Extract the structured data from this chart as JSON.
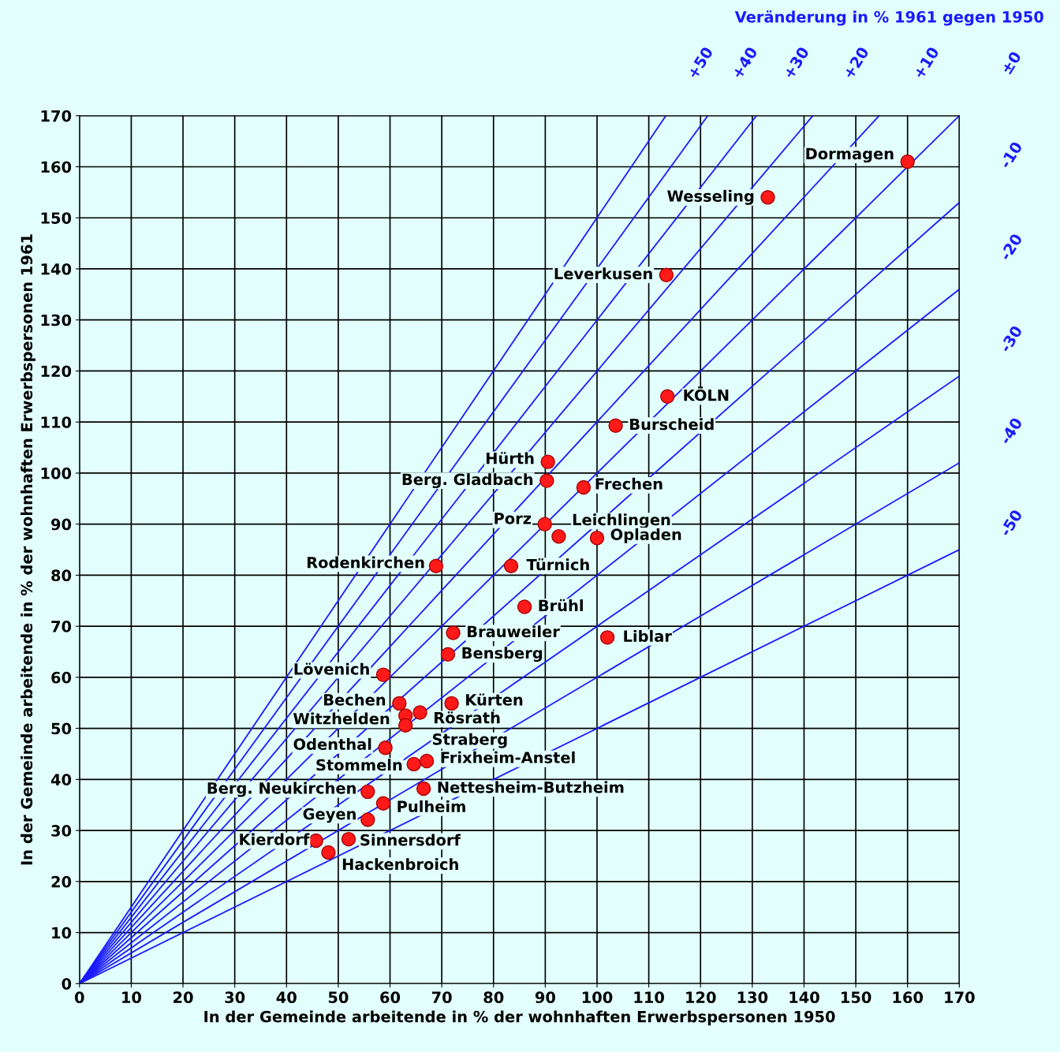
{
  "chart_data": {
    "type": "scatter",
    "xlabel": "In der Gemeinde arbeitende in % der wohnhaften Erwerbspersonen 1950",
    "ylabel": "In der Gemeinde arbeitende in % der wohnhaften Erwerbspersonen 1961",
    "xlim": [
      0,
      170
    ],
    "ylim": [
      0,
      170
    ],
    "xticks": [
      0,
      10,
      20,
      30,
      40,
      50,
      60,
      70,
      80,
      90,
      100,
      110,
      120,
      130,
      140,
      150,
      160,
      170
    ],
    "yticks": [
      0,
      10,
      20,
      30,
      40,
      50,
      60,
      70,
      80,
      90,
      100,
      110,
      120,
      130,
      140,
      150,
      160,
      170
    ],
    "grid": true,
    "marker": "circle",
    "series": [
      {
        "color": "#ff1a1a",
        "x": [
          160,
          133,
          113.4,
          113.6,
          103.6,
          90.5,
          90.3,
          97.4,
          89.9,
          92.6,
          100,
          68.9,
          83.4,
          86,
          72.2,
          71.2,
          102,
          58.7,
          61.8,
          71.9,
          65.8,
          63,
          63,
          59.1,
          64.6,
          67.1,
          55.7,
          66.5,
          58.7,
          55.7,
          45.7,
          52,
          48.1
        ],
        "values": [
          161,
          154,
          138.8,
          115,
          109.3,
          102.2,
          98.5,
          97.2,
          90,
          87.6,
          87.3,
          81.8,
          81.8,
          73.8,
          68.7,
          64.5,
          67.8,
          60.5,
          54.9,
          54.9,
          53.1,
          52.5,
          50.6,
          46.2,
          43,
          43.6,
          37.6,
          38.2,
          35.3,
          32.1,
          28,
          28.3,
          25.7
        ]
      },
      {
        "type": "line",
        "marker": "none",
        "name": "+50",
        "color": "#1a1aff",
        "x": [
          0,
          113.3
        ],
        "values": [
          0,
          170
        ]
      },
      {
        "type": "line",
        "marker": "none",
        "name": "+40",
        "color": "#1a1aff",
        "x": [
          0,
          121.4
        ],
        "values": [
          0,
          170
        ]
      },
      {
        "type": "line",
        "marker": "none",
        "name": "+30",
        "color": "#1a1aff",
        "x": [
          0,
          130.8
        ],
        "values": [
          0,
          170
        ]
      },
      {
        "type": "line",
        "marker": "none",
        "name": "+20",
        "color": "#1a1aff",
        "x": [
          0,
          141.7
        ],
        "values": [
          0,
          170
        ]
      },
      {
        "type": "line",
        "marker": "none",
        "name": "+10",
        "color": "#1a1aff",
        "x": [
          0,
          154.5
        ],
        "values": [
          0,
          170
        ]
      },
      {
        "type": "line",
        "marker": "none",
        "name": "±0",
        "color": "#1a1aff",
        "x": [
          0,
          170
        ],
        "values": [
          0,
          170
        ]
      },
      {
        "type": "line",
        "marker": "none",
        "name": "-10",
        "color": "#1a1aff",
        "x": [
          0,
          170
        ],
        "values": [
          0,
          153
        ]
      },
      {
        "type": "line",
        "marker": "none",
        "name": "-20",
        "color": "#1a1aff",
        "x": [
          0,
          170
        ],
        "values": [
          0,
          136
        ]
      },
      {
        "type": "line",
        "marker": "none",
        "name": "-30",
        "color": "#1a1aff",
        "x": [
          0,
          170
        ],
        "values": [
          0,
          119
        ]
      },
      {
        "type": "line",
        "marker": "none",
        "name": "-40",
        "color": "#1a1aff",
        "x": [
          0,
          170
        ],
        "values": [
          0,
          102
        ]
      },
      {
        "type": "line",
        "marker": "none",
        "name": "-50",
        "color": "#1a1aff",
        "x": [
          0,
          170
        ],
        "values": [
          0,
          85
        ]
      }
    ],
    "annotations": [
      {
        "text": "Dormagen",
        "x": 160,
        "y": 161
      },
      {
        "text": "Wesseling",
        "x": 133,
        "y": 154
      },
      {
        "text": "Leverkusen",
        "x": 113.4,
        "y": 138.8
      },
      {
        "text": "KÖLN",
        "x": 113.6,
        "y": 115
      },
      {
        "text": "Burscheid",
        "x": 103.6,
        "y": 109.3
      },
      {
        "text": "Hürth",
        "x": 90.5,
        "y": 102.2
      },
      {
        "text": "Berg. Gladbach",
        "x": 90.3,
        "y": 98.5
      },
      {
        "text": "Frechen",
        "x": 97.4,
        "y": 97.2
      },
      {
        "text": "Porz",
        "x": 89.9,
        "y": 90
      },
      {
        "text": "Leichlingen",
        "x": 92.6,
        "y": 87.6
      },
      {
        "text": "Opladen",
        "x": 100,
        "y": 87.3
      },
      {
        "text": "Rodenkirchen",
        "x": 68.9,
        "y": 81.8
      },
      {
        "text": "Türnich",
        "x": 83.4,
        "y": 81.8
      },
      {
        "text": "Brühl",
        "x": 86,
        "y": 73.8
      },
      {
        "text": "Brauweiler",
        "x": 72.2,
        "y": 68.7
      },
      {
        "text": "Bensberg",
        "x": 71.2,
        "y": 64.5
      },
      {
        "text": "Liblar",
        "x": 102,
        "y": 67.8
      },
      {
        "text": "Lövenich",
        "x": 58.7,
        "y": 60.5
      },
      {
        "text": "Bechen",
        "x": 61.8,
        "y": 54.9
      },
      {
        "text": "Kürten",
        "x": 71.9,
        "y": 54.9
      },
      {
        "text": "Rösrath",
        "x": 65.8,
        "y": 53.1
      },
      {
        "text": "Witzhelden",
        "x": 63,
        "y": 52.5
      },
      {
        "text": "Straberg",
        "x": 63,
        "y": 50.6
      },
      {
        "text": "Odenthal",
        "x": 59.1,
        "y": 46.2
      },
      {
        "text": "Stommeln",
        "x": 64.6,
        "y": 43
      },
      {
        "text": "Frixheim-Anstel",
        "x": 67.1,
        "y": 43.6
      },
      {
        "text": "Berg. Neukirchen",
        "x": 55.7,
        "y": 37.6
      },
      {
        "text": "Nettesheim-Butzheim",
        "x": 66.5,
        "y": 38.2
      },
      {
        "text": "Pulheim",
        "x": 58.7,
        "y": 35.3
      },
      {
        "text": "Geyen",
        "x": 55.7,
        "y": 32.1
      },
      {
        "text": "Kierdorf",
        "x": 45.7,
        "y": 28
      },
      {
        "text": "Sinnersdorf",
        "x": 52,
        "y": 28.3
      },
      {
        "text": "Hackenbroich",
        "x": 48.1,
        "y": 25.7
      },
      "Veränderung in % 1961 gegen 1950"
    ]
  }
}
